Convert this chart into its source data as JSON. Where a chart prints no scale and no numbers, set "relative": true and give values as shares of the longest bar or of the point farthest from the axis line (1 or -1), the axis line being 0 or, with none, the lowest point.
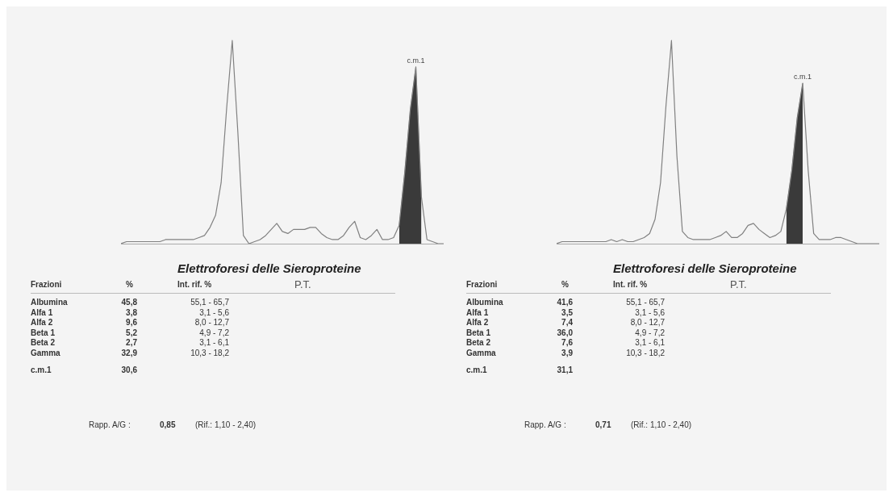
{
  "chart_data": [
    {
      "type": "line",
      "relative": true,
      "legend": false,
      "marker": "none",
      "categories": [
        null,
        null,
        null,
        null,
        null,
        null,
        null,
        null,
        null,
        null,
        null,
        null,
        null,
        null,
        null,
        null,
        null,
        null,
        null,
        null,
        null,
        null,
        null,
        null,
        null,
        null,
        null,
        null,
        null,
        null,
        null,
        null,
        null,
        null,
        null,
        null,
        null,
        null,
        null,
        null,
        null,
        null,
        null,
        null,
        null,
        null,
        null,
        null,
        null,
        null,
        null,
        null,
        null,
        null,
        null,
        null,
        null,
        null,
        null
      ],
      "series": [
        {
          "color": "#808080",
          "values": [
            0,
            0.01,
            0.01,
            0.01,
            0.01,
            0.01,
            0.01,
            0.01,
            0.02,
            0.02,
            0.02,
            0.02,
            0.02,
            0.02,
            0.03,
            0.04,
            0.08,
            0.14,
            0.3,
            0.67,
            1,
            0.55,
            0.04,
            0,
            0.01,
            0.02,
            0.04,
            0.07,
            0.1,
            0.06,
            0.05,
            0.07,
            0.07,
            0.07,
            0.08,
            0.08,
            0.05,
            0.03,
            0.02,
            0.02,
            0.04,
            0.08,
            0.11,
            0.03,
            0.02,
            0.04,
            0.07,
            0.02,
            0.02,
            0.03,
            0.09,
            0.35,
            0.66,
            0.87,
            0.23,
            0.02,
            0.01,
            0,
            0
          ]
        },
        {
          "name": "c.m.1",
          "type": "area",
          "color": "#3a3a3a",
          "values": [
            null,
            null,
            null,
            null,
            null,
            null,
            null,
            null,
            null,
            null,
            null,
            null,
            null,
            null,
            null,
            null,
            null,
            null,
            null,
            null,
            null,
            null,
            null,
            null,
            null,
            null,
            null,
            null,
            null,
            null,
            null,
            null,
            null,
            null,
            null,
            null,
            null,
            null,
            null,
            null,
            null,
            null,
            null,
            null,
            null,
            null,
            null,
            null,
            null,
            null,
            0.09,
            0.35,
            0.66,
            0.87,
            0.23,
            null,
            null,
            null,
            null
          ]
        }
      ]
    },
    {
      "type": "other",
      "title": "Elettroforesi delle Sieroproteine",
      "categories": [
        "Albumina",
        "Alfa 1",
        "Alfa 2",
        "Beta 1",
        "Beta 2",
        "Gamma",
        "c.m.1"
      ],
      "value_labels": [
        "45,8",
        "3,8",
        "9,6",
        "5,2",
        "2,7",
        "32,9",
        "30,6"
      ],
      "annotations": [
        "Frazioni",
        "%",
        "Int. rif. %",
        "P.T.",
        "55,1 - 65,7",
        "3,1 - 5,6",
        "8,0 - 12,7",
        "4,9 - 7,2",
        "3,1 - 6,1",
        "10,3 - 18,2",
        "Rapp. A/G :",
        "0,85",
        "(Rif.: 1,10 - 2,40)"
      ]
    },
    {
      "type": "line",
      "relative": true,
      "legend": false,
      "marker": "none",
      "categories": [
        null,
        null,
        null,
        null,
        null,
        null,
        null,
        null,
        null,
        null,
        null,
        null,
        null,
        null,
        null,
        null,
        null,
        null,
        null,
        null,
        null,
        null,
        null,
        null,
        null,
        null,
        null,
        null,
        null,
        null,
        null,
        null,
        null,
        null,
        null,
        null,
        null,
        null,
        null,
        null,
        null,
        null,
        null,
        null,
        null,
        null,
        null,
        null,
        null,
        null,
        null,
        null,
        null,
        null,
        null,
        null,
        null,
        null,
        null,
        null
      ],
      "series": [
        {
          "color": "#808080",
          "values": [
            0,
            0.01,
            0.01,
            0.01,
            0.01,
            0.01,
            0.01,
            0.01,
            0.01,
            0.01,
            0.02,
            0.01,
            0.02,
            0.01,
            0.01,
            0.02,
            0.03,
            0.05,
            0.12,
            0.3,
            0.68,
            1,
            0.43,
            0.06,
            0.03,
            0.02,
            0.02,
            0.02,
            0.02,
            0.03,
            0.04,
            0.06,
            0.03,
            0.03,
            0.05,
            0.09,
            0.1,
            0.07,
            0.05,
            0.03,
            0.04,
            0.06,
            0.17,
            0.36,
            0.62,
            0.79,
            0.36,
            0.05,
            0.02,
            0.02,
            0.02,
            0.03,
            0.03,
            0.02,
            0.01,
            0,
            0,
            0,
            0,
            0
          ]
        },
        {
          "name": "c.m.1",
          "type": "area",
          "color": "#3a3a3a",
          "values": [
            null,
            null,
            null,
            null,
            null,
            null,
            null,
            null,
            null,
            null,
            null,
            null,
            null,
            null,
            null,
            null,
            null,
            null,
            null,
            null,
            null,
            null,
            null,
            null,
            null,
            null,
            null,
            null,
            null,
            null,
            null,
            null,
            null,
            null,
            null,
            null,
            null,
            null,
            null,
            null,
            null,
            null,
            0.17,
            0.36,
            0.62,
            0.79,
            null,
            null,
            null,
            null,
            null,
            null,
            null,
            null,
            null,
            null,
            null,
            null,
            null,
            null
          ]
        }
      ]
    },
    {
      "type": "other",
      "title": "Elettroforesi delle Sieroproteine",
      "categories": [
        "Albumina",
        "Alfa 1",
        "Alfa 2",
        "Beta 1",
        "Beta 2",
        "Gamma",
        "c.m.1"
      ],
      "value_labels": [
        "41,6",
        "3,5",
        "7,4",
        "36,0",
        "7,6",
        "3,9",
        "31,1"
      ],
      "annotations": [
        "Frazioni",
        "%",
        "Int. rif. %",
        "P.T.",
        "55,1 - 65,7",
        "3,1 - 5,6",
        "8,0 - 12,7",
        "4,9 - 7,2",
        "3,1 - 6,1",
        "10,3 - 18,2",
        "Rapp. A/G :",
        "0,71",
        "(Rif.: 1,10 - 2,40)"
      ]
    }
  ]
}
